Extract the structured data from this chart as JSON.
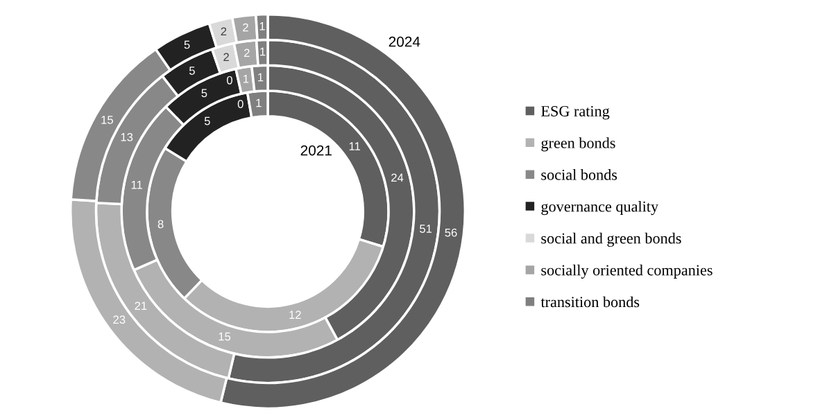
{
  "chart_data": {
    "type": "donut",
    "categories": [
      "ESG rating",
      "green bonds",
      "social bonds",
      "governance quality",
      "social and green bonds",
      "socially oriented companies",
      "transition bonds"
    ],
    "colors": [
      "#5f5f5f",
      "#b2b2b2",
      "#888888",
      "#222222",
      "#d9d9d9",
      "#a5a5a5",
      "#7f7f7f"
    ],
    "series": [
      {
        "name": "2021",
        "values": [
          11,
          12,
          8,
          5,
          0,
          0,
          1
        ],
        "value_labels": [
          "11",
          "12",
          "8",
          "5",
          "0",
          null,
          "1"
        ]
      },
      {
        "values": [
          24,
          15,
          11,
          5,
          0,
          1,
          1
        ],
        "value_labels": [
          "24",
          "15",
          "11",
          "5",
          "0",
          "1",
          "1"
        ]
      },
      {
        "values": [
          51,
          21,
          13,
          5,
          2,
          2,
          1
        ]
      },
      {
        "name": "2024",
        "values": [
          56,
          23,
          15,
          5,
          2,
          2,
          1
        ]
      }
    ],
    "data_labels": true,
    "legend": "right"
  }
}
